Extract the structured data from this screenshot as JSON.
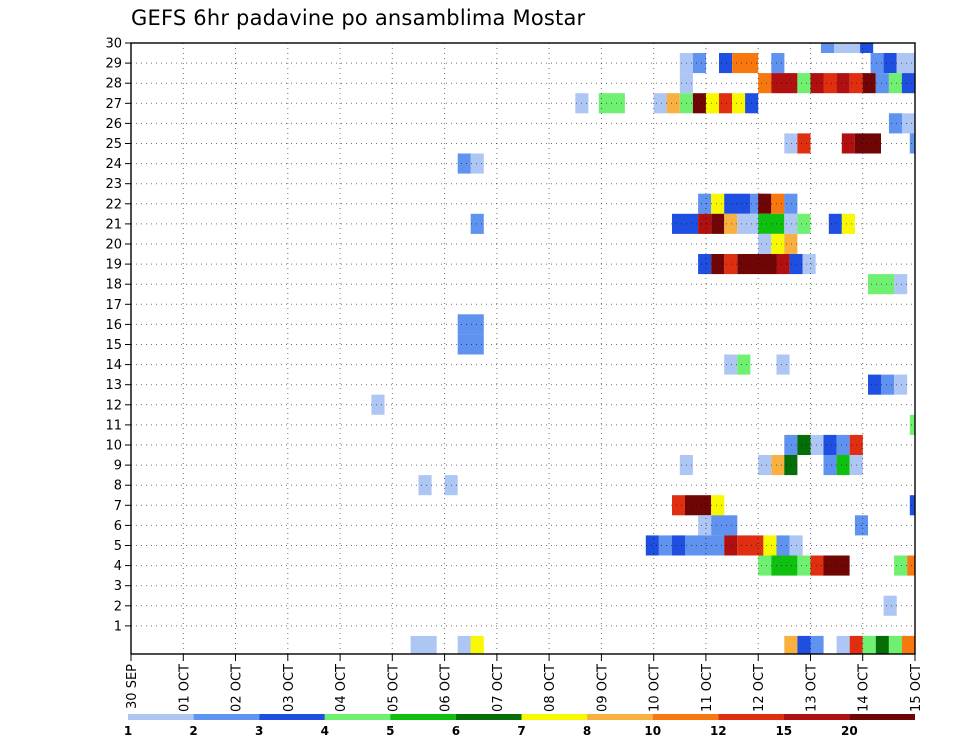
{
  "chart_data": {
    "type": "heatmap",
    "title": "GEFS 6hr padavine po ansamblima Mostar",
    "xlabel": "",
    "ylabel": "",
    "x_tick_labels": [
      "30 SEP",
      "01 OCT",
      "02 OCT",
      "03 OCT",
      "04 OCT",
      "05 OCT",
      "06 OCT",
      "07 OCT",
      "08 OCT",
      "09 OCT",
      "10 OCT",
      "11 OCT",
      "12 OCT",
      "13 OCT",
      "14 OCT",
      "15 OCT"
    ],
    "y_tick_labels": [
      "1",
      "2",
      "3",
      "4",
      "5",
      "6",
      "7",
      "8",
      "9",
      "10",
      "11",
      "12",
      "13",
      "14",
      "15",
      "16",
      "17",
      "18",
      "19",
      "20",
      "21",
      "22",
      "23",
      "24",
      "25",
      "26",
      "27",
      "28",
      "29",
      "30"
    ],
    "x_range_days": [
      0,
      15
    ],
    "y_range_members": [
      0,
      30
    ],
    "grid": true,
    "legend": "colorbar-bottom",
    "colorbar": {
      "colors": [
        "#aec6f4",
        "#6092f0",
        "#1f4fe0",
        "#70f070",
        "#10c010",
        "#066e06",
        "#f8f800",
        "#f8b040",
        "#f87810",
        "#e02e10",
        "#b01010",
        "#700505"
      ],
      "labels": [
        "1",
        "2",
        "3",
        "4",
        "5",
        "6",
        "7",
        "8",
        "10",
        "12",
        "15",
        "20"
      ]
    },
    "cells": [
      {
        "m": 30,
        "d": 13.2,
        "w": 0.25,
        "c": 1
      },
      {
        "m": 30,
        "d": 13.45,
        "w": 0.5,
        "c": 0
      },
      {
        "m": 30,
        "d": 13.95,
        "w": 0.25,
        "c": 2
      },
      {
        "m": 29,
        "d": 10.5,
        "w": 0.25,
        "c": 0
      },
      {
        "m": 29,
        "d": 10.75,
        "w": 0.25,
        "c": 1
      },
      {
        "m": 29,
        "d": 11.25,
        "w": 0.25,
        "c": 2
      },
      {
        "m": 29,
        "d": 11.5,
        "w": 0.5,
        "c": 8
      },
      {
        "m": 29,
        "d": 12.25,
        "w": 0.25,
        "c": 1
      },
      {
        "m": 29,
        "d": 14.15,
        "w": 0.25,
        "c": 1
      },
      {
        "m": 29,
        "d": 14.4,
        "w": 0.25,
        "c": 2
      },
      {
        "m": 29,
        "d": 14.65,
        "w": 0.35,
        "c": 0
      },
      {
        "m": 28,
        "d": 10.5,
        "w": 0.25,
        "c": 0
      },
      {
        "m": 28,
        "d": 12.0,
        "w": 0.25,
        "c": 8
      },
      {
        "m": 28,
        "d": 12.25,
        "w": 0.5,
        "c": 10
      },
      {
        "m": 28,
        "d": 12.75,
        "w": 0.25,
        "c": 3
      },
      {
        "m": 28,
        "d": 13.0,
        "w": 0.25,
        "c": 10
      },
      {
        "m": 28,
        "d": 13.25,
        "w": 0.25,
        "c": 9
      },
      {
        "m": 28,
        "d": 13.5,
        "w": 0.25,
        "c": 10
      },
      {
        "m": 28,
        "d": 13.75,
        "w": 0.25,
        "c": 9
      },
      {
        "m": 28,
        "d": 14.0,
        "w": 0.25,
        "c": 11
      },
      {
        "m": 28,
        "d": 14.25,
        "w": 0.25,
        "c": 1
      },
      {
        "m": 28,
        "d": 14.5,
        "w": 0.25,
        "c": 3
      },
      {
        "m": 28,
        "d": 14.75,
        "w": 0.25,
        "c": 2
      },
      {
        "m": 27,
        "d": 8.5,
        "w": 0.25,
        "c": 0
      },
      {
        "m": 27,
        "d": 8.95,
        "w": 0.5,
        "c": 3
      },
      {
        "m": 27,
        "d": 10.0,
        "w": 0.25,
        "c": 0
      },
      {
        "m": 27,
        "d": 10.25,
        "w": 0.25,
        "c": 7
      },
      {
        "m": 27,
        "d": 10.5,
        "w": 0.25,
        "c": 3
      },
      {
        "m": 27,
        "d": 10.75,
        "w": 0.25,
        "c": 11
      },
      {
        "m": 27,
        "d": 11.0,
        "w": 0.25,
        "c": 6
      },
      {
        "m": 27,
        "d": 11.25,
        "w": 0.25,
        "c": 9
      },
      {
        "m": 27,
        "d": 11.5,
        "w": 0.25,
        "c": 6
      },
      {
        "m": 27,
        "d": 11.75,
        "w": 0.25,
        "c": 2
      },
      {
        "m": 26,
        "d": 14.5,
        "w": 0.25,
        "c": 1
      },
      {
        "m": 26,
        "d": 14.75,
        "w": 0.25,
        "c": 0
      },
      {
        "m": 25,
        "d": 12.5,
        "w": 0.25,
        "c": 0
      },
      {
        "m": 25,
        "d": 12.75,
        "w": 0.25,
        "c": 9
      },
      {
        "m": 25,
        "d": 13.6,
        "w": 0.25,
        "c": 10
      },
      {
        "m": 25,
        "d": 13.85,
        "w": 0.5,
        "c": 11
      },
      {
        "m": 25,
        "d": 14.9,
        "w": 0.1,
        "c": 1
      },
      {
        "m": 24,
        "d": 6.25,
        "w": 0.25,
        "c": 1
      },
      {
        "m": 24,
        "d": 6.5,
        "w": 0.25,
        "c": 0
      },
      {
        "m": 22,
        "d": 10.85,
        "w": 0.25,
        "c": 1
      },
      {
        "m": 22,
        "d": 11.1,
        "w": 0.25,
        "c": 6
      },
      {
        "m": 22,
        "d": 11.35,
        "w": 0.5,
        "c": 2
      },
      {
        "m": 22,
        "d": 11.85,
        "w": 0.25,
        "c": 1
      },
      {
        "m": 22,
        "d": 12.0,
        "w": 0.25,
        "c": 11
      },
      {
        "m": 22,
        "d": 12.25,
        "w": 0.25,
        "c": 8
      },
      {
        "m": 22,
        "d": 12.5,
        "w": 0.25,
        "c": 1
      },
      {
        "m": 21,
        "d": 6.5,
        "w": 0.25,
        "c": 1
      },
      {
        "m": 21,
        "d": 10.35,
        "w": 0.5,
        "c": 2
      },
      {
        "m": 21,
        "d": 10.85,
        "w": 0.25,
        "c": 10
      },
      {
        "m": 21,
        "d": 11.1,
        "w": 0.25,
        "c": 11
      },
      {
        "m": 21,
        "d": 11.35,
        "w": 0.25,
        "c": 7
      },
      {
        "m": 21,
        "d": 11.6,
        "w": 0.5,
        "c": 0
      },
      {
        "m": 21,
        "d": 12.0,
        "w": 0.5,
        "c": 4
      },
      {
        "m": 21,
        "d": 12.5,
        "w": 0.25,
        "c": 0
      },
      {
        "m": 21,
        "d": 12.75,
        "w": 0.25,
        "c": 3
      },
      {
        "m": 21,
        "d": 13.35,
        "w": 0.25,
        "c": 2
      },
      {
        "m": 21,
        "d": 13.6,
        "w": 0.25,
        "c": 6
      },
      {
        "m": 20,
        "d": 12.0,
        "w": 0.25,
        "c": 0
      },
      {
        "m": 20,
        "d": 12.25,
        "w": 0.25,
        "c": 6
      },
      {
        "m": 20,
        "d": 12.5,
        "w": 0.25,
        "c": 7
      },
      {
        "m": 19,
        "d": 10.85,
        "w": 0.25,
        "c": 2
      },
      {
        "m": 19,
        "d": 11.1,
        "w": 0.25,
        "c": 11
      },
      {
        "m": 19,
        "d": 11.35,
        "w": 0.25,
        "c": 9
      },
      {
        "m": 19,
        "d": 11.6,
        "w": 0.75,
        "c": 11
      },
      {
        "m": 19,
        "d": 12.35,
        "w": 0.25,
        "c": 10
      },
      {
        "m": 19,
        "d": 12.6,
        "w": 0.25,
        "c": 2
      },
      {
        "m": 19,
        "d": 12.85,
        "w": 0.25,
        "c": 0
      },
      {
        "m": 18,
        "d": 14.1,
        "w": 0.5,
        "c": 3
      },
      {
        "m": 18,
        "d": 14.6,
        "w": 0.25,
        "c": 0
      },
      {
        "m": 15,
        "d": 6.25,
        "w": 0.5,
        "c": 1
      },
      {
        "m": 16,
        "d": 6.25,
        "w": 0.5,
        "c": 1
      },
      {
        "m": 14,
        "d": 11.35,
        "w": 0.25,
        "c": 0
      },
      {
        "m": 14,
        "d": 11.6,
        "w": 0.25,
        "c": 3
      },
      {
        "m": 14,
        "d": 12.35,
        "w": 0.25,
        "c": 0
      },
      {
        "m": 13,
        "d": 14.1,
        "w": 0.25,
        "c": 2
      },
      {
        "m": 13,
        "d": 14.35,
        "w": 0.25,
        "c": 1
      },
      {
        "m": 13,
        "d": 14.6,
        "w": 0.25,
        "c": 0
      },
      {
        "m": 12,
        "d": 4.6,
        "w": 0.25,
        "c": 0
      },
      {
        "m": 11,
        "d": 14.9,
        "w": 0.1,
        "c": 3
      },
      {
        "m": 10,
        "d": 12.5,
        "w": 0.25,
        "c": 1
      },
      {
        "m": 10,
        "d": 12.75,
        "w": 0.25,
        "c": 5
      },
      {
        "m": 10,
        "d": 13.0,
        "w": 0.25,
        "c": 0
      },
      {
        "m": 10,
        "d": 13.25,
        "w": 0.25,
        "c": 2
      },
      {
        "m": 10,
        "d": 13.5,
        "w": 0.25,
        "c": 1
      },
      {
        "m": 10,
        "d": 13.75,
        "w": 0.25,
        "c": 9
      },
      {
        "m": 9,
        "d": 10.5,
        "w": 0.25,
        "c": 0
      },
      {
        "m": 9,
        "d": 12.0,
        "w": 0.25,
        "c": 0
      },
      {
        "m": 9,
        "d": 12.25,
        "w": 0.25,
        "c": 7
      },
      {
        "m": 9,
        "d": 12.5,
        "w": 0.25,
        "c": 5
      },
      {
        "m": 9,
        "d": 13.25,
        "w": 0.25,
        "c": 1
      },
      {
        "m": 9,
        "d": 13.5,
        "w": 0.25,
        "c": 4
      },
      {
        "m": 9,
        "d": 13.75,
        "w": 0.25,
        "c": 0
      },
      {
        "m": 8,
        "d": 5.5,
        "w": 0.25,
        "c": 0
      },
      {
        "m": 8,
        "d": 6.0,
        "w": 0.25,
        "c": 0
      },
      {
        "m": 7,
        "d": 10.35,
        "w": 0.25,
        "c": 9
      },
      {
        "m": 7,
        "d": 10.6,
        "w": 0.5,
        "c": 11
      },
      {
        "m": 7,
        "d": 11.1,
        "w": 0.25,
        "c": 6
      },
      {
        "m": 7,
        "d": 14.9,
        "w": 0.1,
        "c": 2
      },
      {
        "m": 6,
        "d": 10.85,
        "w": 0.25,
        "c": 0
      },
      {
        "m": 6,
        "d": 11.1,
        "w": 0.5,
        "c": 1
      },
      {
        "m": 6,
        "d": 13.85,
        "w": 0.25,
        "c": 1
      },
      {
        "m": 5,
        "d": 9.85,
        "w": 0.25,
        "c": 2
      },
      {
        "m": 5,
        "d": 10.1,
        "w": 0.25,
        "c": 1
      },
      {
        "m": 5,
        "d": 10.35,
        "w": 0.25,
        "c": 2
      },
      {
        "m": 5,
        "d": 10.6,
        "w": 0.75,
        "c": 1
      },
      {
        "m": 5,
        "d": 11.35,
        "w": 0.25,
        "c": 10
      },
      {
        "m": 5,
        "d": 11.6,
        "w": 0.5,
        "c": 9
      },
      {
        "m": 5,
        "d": 12.1,
        "w": 0.25,
        "c": 6
      },
      {
        "m": 5,
        "d": 12.35,
        "w": 0.25,
        "c": 1
      },
      {
        "m": 5,
        "d": 12.6,
        "w": 0.25,
        "c": 0
      },
      {
        "m": 4,
        "d": 12.0,
        "w": 0.25,
        "c": 3
      },
      {
        "m": 4,
        "d": 12.25,
        "w": 0.5,
        "c": 4
      },
      {
        "m": 4,
        "d": 12.75,
        "w": 0.25,
        "c": 3
      },
      {
        "m": 4,
        "d": 13.0,
        "w": 0.25,
        "c": 9
      },
      {
        "m": 4,
        "d": 13.25,
        "w": 0.5,
        "c": 11
      },
      {
        "m": 4,
        "d": 14.6,
        "w": 0.25,
        "c": 3
      },
      {
        "m": 4,
        "d": 14.85,
        "w": 0.15,
        "c": 8
      },
      {
        "m": 2,
        "d": 14.4,
        "w": 0.25,
        "c": 0
      },
      {
        "m": 0,
        "d": 5.35,
        "w": 0.5,
        "c": 0
      },
      {
        "m": 0,
        "d": 6.25,
        "w": 0.25,
        "c": 0
      },
      {
        "m": 0,
        "d": 6.5,
        "w": 0.25,
        "c": 6
      },
      {
        "m": 0,
        "d": 12.5,
        "w": 0.25,
        "c": 7
      },
      {
        "m": 0,
        "d": 12.75,
        "w": 0.25,
        "c": 2
      },
      {
        "m": 0,
        "d": 13.0,
        "w": 0.25,
        "c": 1
      },
      {
        "m": 0,
        "d": 13.5,
        "w": 0.25,
        "c": 0
      },
      {
        "m": 0,
        "d": 13.75,
        "w": 0.25,
        "c": 9
      },
      {
        "m": 0,
        "d": 14.0,
        "w": 0.25,
        "c": 3
      },
      {
        "m": 0,
        "d": 14.25,
        "w": 0.25,
        "c": 5
      },
      {
        "m": 0,
        "d": 14.5,
        "w": 0.25,
        "c": 3
      },
      {
        "m": 0,
        "d": 14.75,
        "w": 0.25,
        "c": 8
      }
    ]
  }
}
